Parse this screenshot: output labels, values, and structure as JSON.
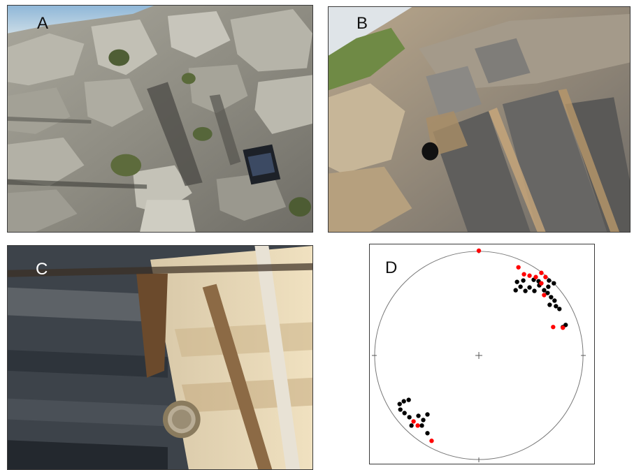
{
  "panels": {
    "a": {
      "label": "A"
    },
    "b": {
      "label": "B"
    },
    "c": {
      "label": "C"
    },
    "d": {
      "label": "D"
    }
  },
  "stereonet": {
    "series": [
      {
        "color": "#000000",
        "points": [
          [
            738,
            415
          ],
          [
            745,
            410
          ],
          [
            752,
            416
          ],
          [
            758,
            411
          ],
          [
            765,
            416
          ],
          [
            772,
            408
          ],
          [
            779,
            415
          ],
          [
            785,
            410
          ],
          [
            740,
            403
          ],
          [
            749,
            401
          ],
          [
            764,
            400
          ],
          [
            771,
            402
          ],
          [
            786,
            401
          ],
          [
            793,
            405
          ],
          [
            784,
            419
          ],
          [
            789,
            425
          ],
          [
            794,
            430
          ],
          [
            787,
            436
          ],
          [
            796,
            438
          ],
          [
            801,
            442
          ],
          [
            806,
            468
          ],
          [
            810,
            465
          ],
          [
            571,
            579
          ],
          [
            577,
            575
          ],
          [
            584,
            573
          ],
          [
            572,
            587
          ],
          [
            578,
            592
          ],
          [
            585,
            598
          ],
          [
            598,
            596
          ],
          [
            605,
            602
          ],
          [
            611,
            594
          ],
          [
            603,
            610
          ],
          [
            611,
            621
          ],
          [
            588,
            610
          ]
        ]
      },
      {
        "color": "#ff0000",
        "points": [
          [
            685,
            358
          ],
          [
            742,
            382
          ],
          [
            750,
            392
          ],
          [
            758,
            394
          ],
          [
            767,
            396
          ],
          [
            775,
            390
          ],
          [
            781,
            396
          ],
          [
            775,
            405
          ],
          [
            779,
            422
          ],
          [
            792,
            468
          ],
          [
            806,
            469
          ],
          [
            591,
            604
          ],
          [
            597,
            610
          ],
          [
            617,
            632
          ]
        ]
      }
    ]
  }
}
